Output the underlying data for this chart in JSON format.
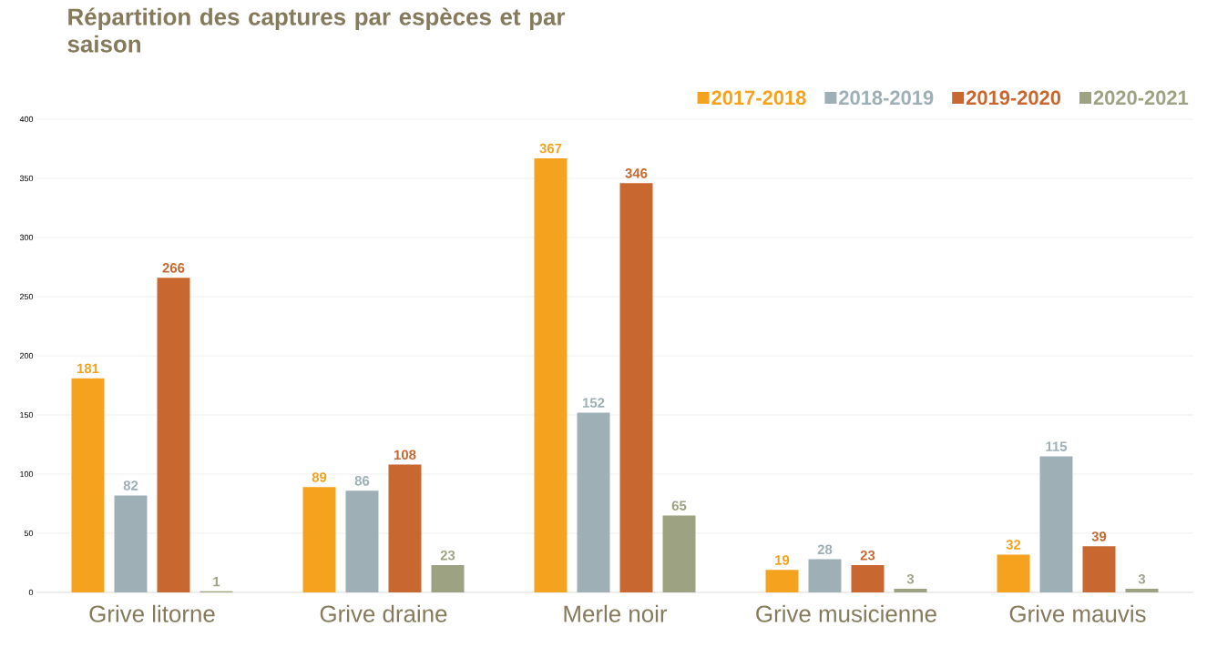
{
  "chart_data": {
    "type": "bar",
    "title": "Répartition des captures par espèces et par saison",
    "categories": [
      "Grive litorne",
      "Grive draine",
      "Merle noir",
      "Grive musicienne",
      "Grive mauvis"
    ],
    "series": [
      {
        "name": "2017-2018",
        "color": "#f5a21e",
        "values": [
          181,
          89,
          367,
          19,
          32
        ]
      },
      {
        "name": "2018-2019",
        "color": "#9eb0b5",
        "values": [
          82,
          86,
          152,
          28,
          115
        ]
      },
      {
        "name": "2019-2020",
        "color": "#c96730",
        "values": [
          266,
          108,
          346,
          23,
          39
        ]
      },
      {
        "name": "2020-2021",
        "color": "#9da283",
        "values": [
          1,
          23,
          65,
          3,
          3
        ]
      }
    ],
    "ylim": [
      0,
      400
    ],
    "yticks": [
      0,
      50,
      100,
      150,
      200,
      250,
      300,
      350,
      400
    ],
    "grid": "y",
    "legend": "top right",
    "data_labels": true
  }
}
